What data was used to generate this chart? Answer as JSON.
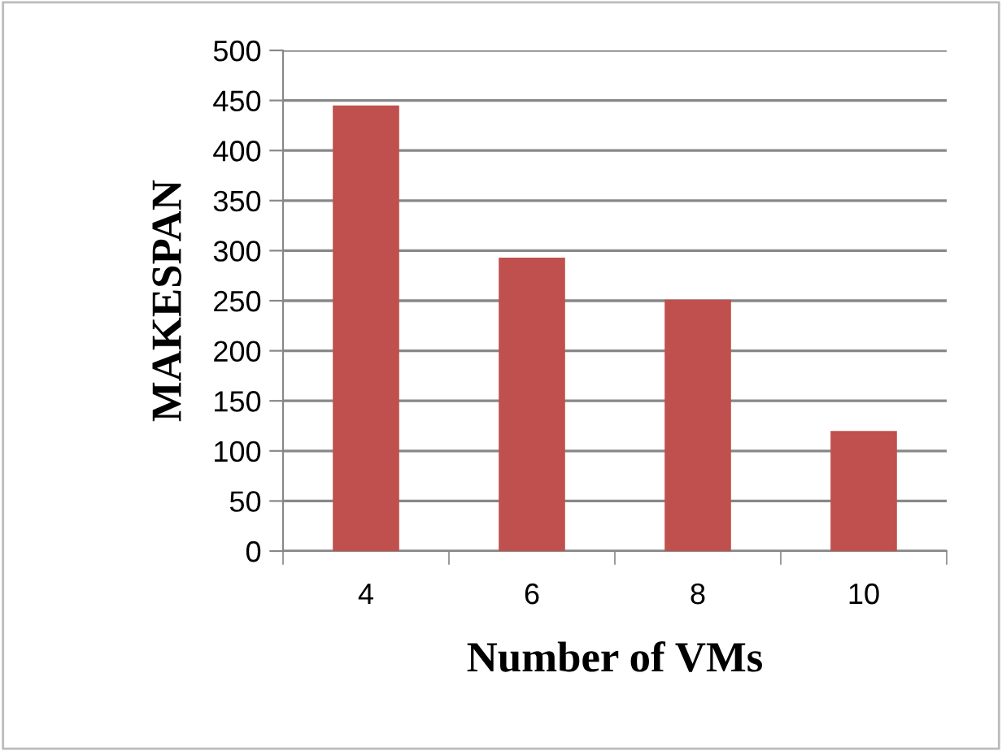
{
  "chart_data": {
    "type": "bar",
    "xlabel": "Number of VMs",
    "ylabel": "MAKESPAN",
    "categories": [
      "4",
      "6",
      "8",
      "10"
    ],
    "values": [
      445,
      293,
      251,
      120
    ],
    "color": "#c0504d",
    "ylim": [
      0,
      500
    ],
    "yticks": [
      0,
      50,
      100,
      150,
      200,
      250,
      300,
      350,
      400,
      450,
      500
    ],
    "grid": "y",
    "legend": false
  }
}
